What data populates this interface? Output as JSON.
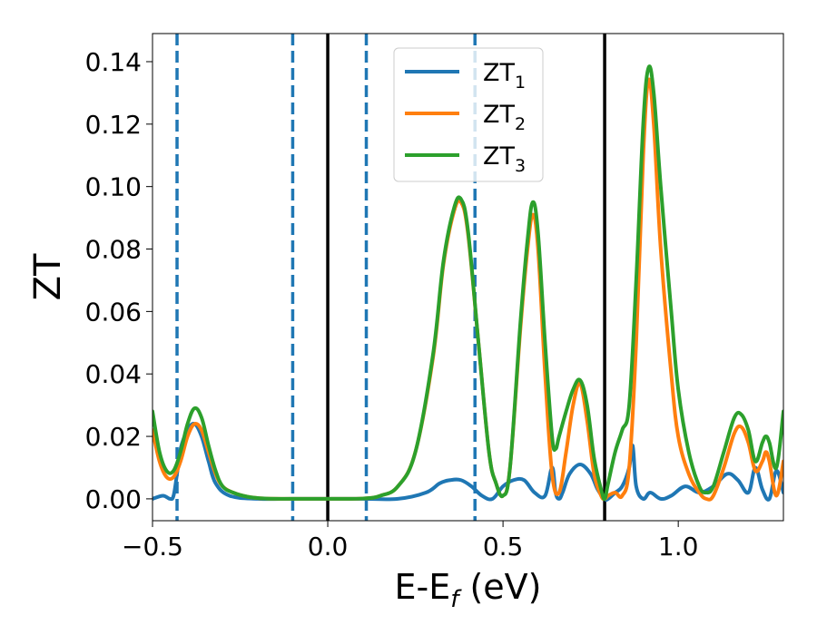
{
  "chart_data": {
    "type": "line",
    "xlabel": "E-E_f (eV)",
    "ylabel": "ZT",
    "xlim": [
      -0.5,
      1.3
    ],
    "ylim": [
      -0.007,
      0.149
    ],
    "grid": false,
    "legend_position": "top-center",
    "x_ticks": [
      -0.5,
      0.0,
      0.5,
      1.0
    ],
    "x_tick_labels": [
      "−0.5",
      "0.0",
      "0.5",
      "1.0"
    ],
    "y_ticks": [
      0.0,
      0.02,
      0.04,
      0.06,
      0.08,
      0.1,
      0.12,
      0.14
    ],
    "y_tick_labels": [
      "0.00",
      "0.02",
      "0.04",
      "0.06",
      "0.08",
      "0.10",
      "0.12",
      "0.14"
    ],
    "vertical_lines": [
      {
        "x": -0.43,
        "style": "dashed",
        "color": "#1f77b4"
      },
      {
        "x": -0.1,
        "style": "dashed",
        "color": "#1f77b4"
      },
      {
        "x": 0.0,
        "style": "solid",
        "color": "#000000"
      },
      {
        "x": 0.11,
        "style": "dashed",
        "color": "#1f77b4"
      },
      {
        "x": 0.42,
        "style": "dashed",
        "color": "#1f77b4"
      },
      {
        "x": 0.79,
        "style": "solid",
        "color": "#000000"
      }
    ],
    "series": [
      {
        "name": "ZT_1",
        "name_base": "ZT",
        "name_sub": "1",
        "color": "#1f77b4",
        "x": [
          -0.5,
          -0.47,
          -0.45,
          -0.44,
          -0.43,
          -0.42,
          -0.4,
          -0.38,
          -0.36,
          -0.34,
          -0.32,
          -0.28,
          -0.2,
          -0.1,
          0.0,
          0.1,
          0.2,
          0.28,
          0.32,
          0.35,
          0.38,
          0.41,
          0.44,
          0.47,
          0.5,
          0.53,
          0.56,
          0.59,
          0.62,
          0.64,
          0.65,
          0.66,
          0.67,
          0.69,
          0.72,
          0.75,
          0.77,
          0.79,
          0.8,
          0.82,
          0.84,
          0.86,
          0.87,
          0.88,
          0.9,
          0.92,
          0.95,
          0.98,
          1.02,
          1.06,
          1.1,
          1.14,
          1.17,
          1.2,
          1.22,
          1.24,
          1.26,
          1.28,
          1.3
        ],
        "y": [
          0.0,
          0.001,
          0.0,
          0.001,
          0.008,
          0.016,
          0.022,
          0.024,
          0.02,
          0.012,
          0.005,
          0.001,
          0.0,
          0.0,
          0.0,
          0.0,
          0.0,
          0.002,
          0.005,
          0.006,
          0.006,
          0.004,
          0.001,
          0.0,
          0.004,
          0.006,
          0.006,
          0.002,
          0.001,
          0.01,
          0.002,
          0.0,
          0.002,
          0.008,
          0.011,
          0.008,
          0.003,
          0.0,
          0.0,
          0.002,
          0.004,
          0.01,
          0.017,
          0.004,
          0.0,
          0.002,
          0.0,
          0.001,
          0.004,
          0.002,
          0.004,
          0.008,
          0.006,
          0.002,
          0.01,
          0.003,
          0.0,
          0.009,
          0.002
        ]
      },
      {
        "name": "ZT_2",
        "name_base": "ZT",
        "name_sub": "2",
        "color": "#ff7f0e",
        "x": [
          -0.5,
          -0.48,
          -0.46,
          -0.44,
          -0.42,
          -0.4,
          -0.38,
          -0.36,
          -0.34,
          -0.32,
          -0.3,
          -0.27,
          -0.23,
          -0.18,
          -0.1,
          0.0,
          0.1,
          0.15,
          0.2,
          0.25,
          0.3,
          0.33,
          0.36,
          0.38,
          0.4,
          0.43,
          0.46,
          0.48,
          0.5,
          0.52,
          0.55,
          0.57,
          0.585,
          0.6,
          0.62,
          0.64,
          0.66,
          0.68,
          0.7,
          0.72,
          0.74,
          0.76,
          0.78,
          0.79,
          0.8,
          0.82,
          0.84,
          0.86,
          0.88,
          0.9,
          0.915,
          0.93,
          0.95,
          0.98,
          1.0,
          1.03,
          1.06,
          1.08,
          1.1,
          1.13,
          1.16,
          1.18,
          1.2,
          1.22,
          1.24,
          1.25,
          1.26,
          1.28,
          1.3
        ],
        "y": [
          0.022,
          0.012,
          0.007,
          0.007,
          0.012,
          0.02,
          0.024,
          0.022,
          0.015,
          0.008,
          0.004,
          0.002,
          0.0007,
          0.0001,
          0.0,
          0.0,
          0.0001,
          0.001,
          0.004,
          0.015,
          0.045,
          0.075,
          0.092,
          0.095,
          0.085,
          0.05,
          0.015,
          0.005,
          0.001,
          0.01,
          0.055,
          0.08,
          0.091,
          0.08,
          0.04,
          0.008,
          0.002,
          0.015,
          0.03,
          0.037,
          0.025,
          0.008,
          0.001,
          0.0,
          0.001,
          0.002,
          0.001,
          0.01,
          0.05,
          0.11,
          0.134,
          0.12,
          0.08,
          0.04,
          0.02,
          0.008,
          0.002,
          0.0,
          0.001,
          0.01,
          0.021,
          0.023,
          0.018,
          0.009,
          0.012,
          0.015,
          0.012,
          0.001,
          0.012
        ]
      },
      {
        "name": "ZT_3",
        "name_base": "ZT",
        "name_sub": "3",
        "color": "#2ca02c",
        "x": [
          -0.5,
          -0.48,
          -0.46,
          -0.44,
          -0.42,
          -0.4,
          -0.38,
          -0.36,
          -0.34,
          -0.32,
          -0.3,
          -0.27,
          -0.23,
          -0.18,
          -0.1,
          0.0,
          0.1,
          0.15,
          0.2,
          0.25,
          0.3,
          0.33,
          0.36,
          0.38,
          0.4,
          0.43,
          0.46,
          0.48,
          0.5,
          0.52,
          0.55,
          0.57,
          0.585,
          0.6,
          0.62,
          0.64,
          0.65,
          0.66,
          0.68,
          0.7,
          0.72,
          0.74,
          0.76,
          0.78,
          0.79,
          0.8,
          0.82,
          0.84,
          0.86,
          0.88,
          0.9,
          0.915,
          0.93,
          0.95,
          0.98,
          1.0,
          1.03,
          1.06,
          1.08,
          1.1,
          1.13,
          1.16,
          1.18,
          1.2,
          1.22,
          1.24,
          1.25,
          1.26,
          1.28,
          1.3
        ],
        "y": [
          0.028,
          0.015,
          0.009,
          0.009,
          0.015,
          0.024,
          0.029,
          0.026,
          0.017,
          0.009,
          0.004,
          0.002,
          0.0007,
          0.0001,
          0.0,
          0.0,
          0.0001,
          0.001,
          0.004,
          0.015,
          0.046,
          0.076,
          0.093,
          0.096,
          0.086,
          0.05,
          0.015,
          0.005,
          0.001,
          0.01,
          0.057,
          0.083,
          0.095,
          0.085,
          0.05,
          0.02,
          0.016,
          0.02,
          0.028,
          0.035,
          0.038,
          0.03,
          0.013,
          0.003,
          0.0,
          0.005,
          0.015,
          0.022,
          0.03,
          0.07,
          0.12,
          0.138,
          0.13,
          0.1,
          0.06,
          0.035,
          0.015,
          0.004,
          0.002,
          0.004,
          0.015,
          0.026,
          0.027,
          0.022,
          0.012,
          0.018,
          0.02,
          0.018,
          0.01,
          0.028
        ]
      }
    ]
  }
}
